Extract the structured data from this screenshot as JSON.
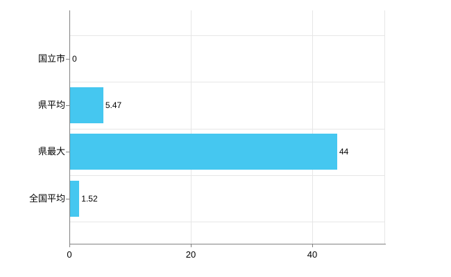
{
  "chart_data": {
    "type": "bar",
    "orientation": "horizontal",
    "title": "",
    "xlabel": "",
    "ylabel": "",
    "categories": [
      "国立市",
      "県平均",
      "県最大",
      "全国平均"
    ],
    "values": [
      0,
      5.47,
      44,
      1.52
    ],
    "value_labels": [
      "0",
      "5.47",
      "44",
      "1.52"
    ],
    "xlim": [
      0,
      52
    ],
    "xticks": [
      0,
      20,
      40
    ],
    "xtick_labels": [
      "0",
      "20",
      "40"
    ],
    "grid": true,
    "legend": false,
    "colors": {
      "bar": "#45c7f0",
      "axis": "#808080",
      "gridline": "#e6e6e6",
      "text": "#000000"
    }
  }
}
